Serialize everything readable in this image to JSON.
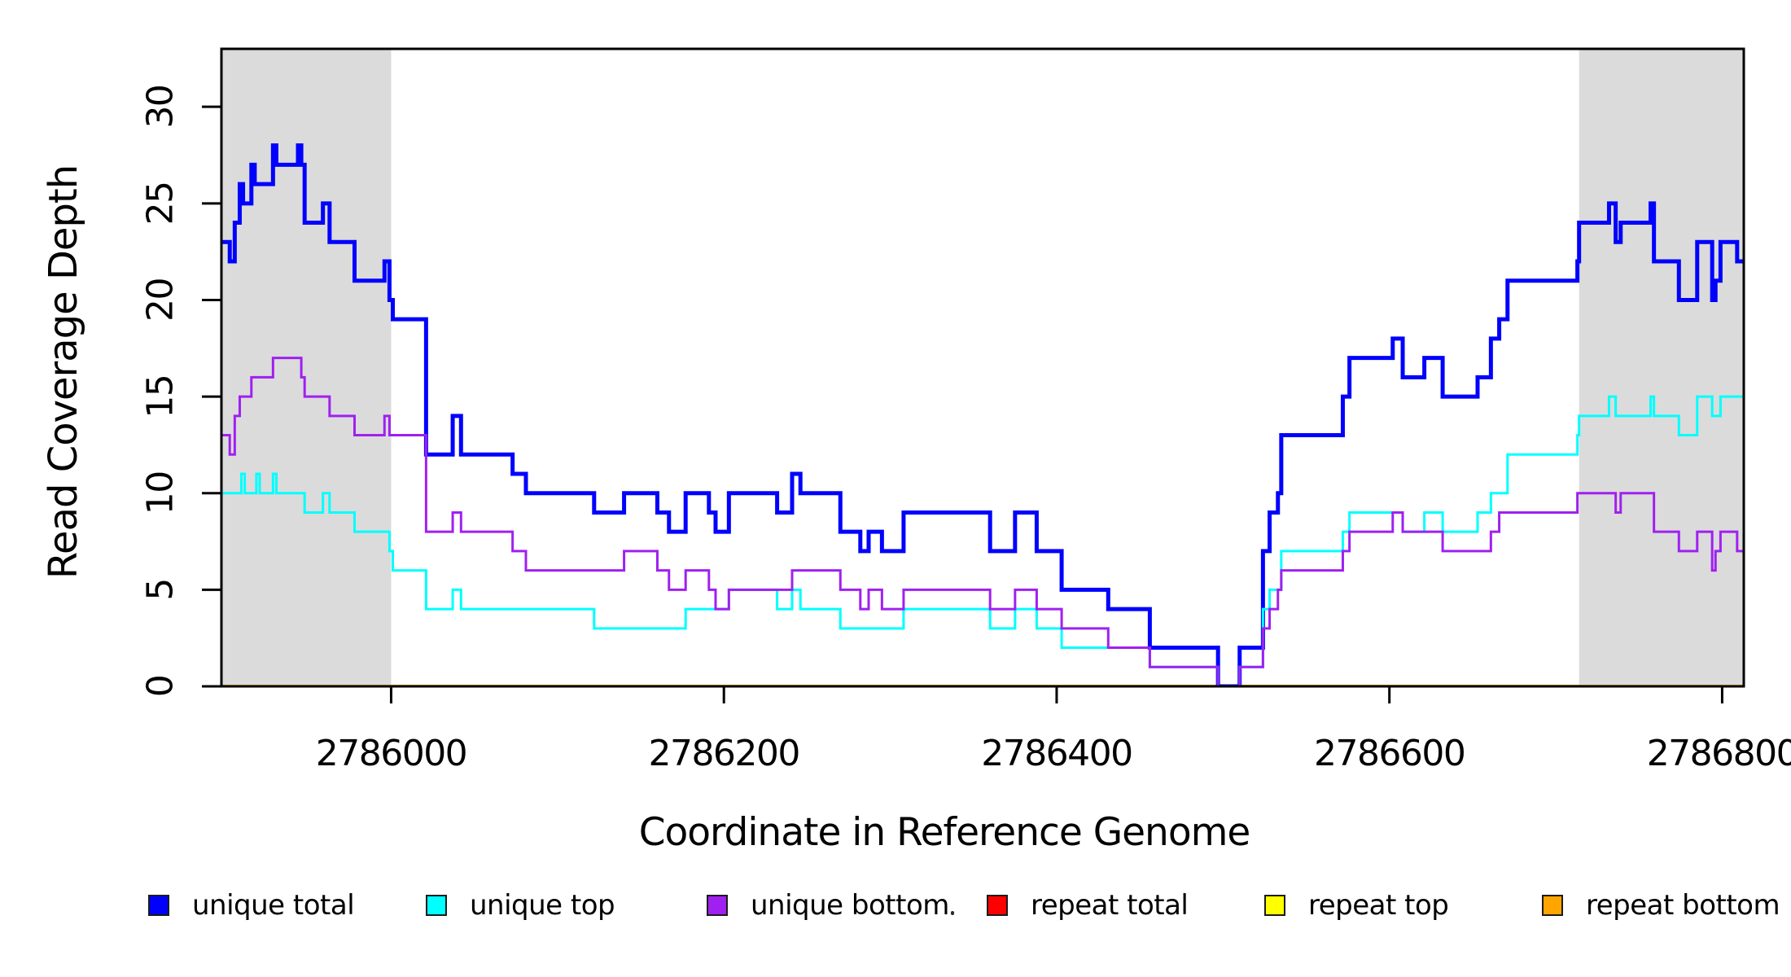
{
  "chart_data": {
    "type": "line",
    "subtype": "step",
    "title": "",
    "xlabel": "Coordinate in Reference Genome",
    "ylabel": "Read Coverage Depth",
    "x_range": [
      2785898,
      2786813
    ],
    "y_range": [
      0,
      33
    ],
    "x_ticks": [
      2786000,
      2786200,
      2786400,
      2786600,
      2786800
    ],
    "y_ticks": [
      0,
      5,
      10,
      15,
      20,
      25,
      30
    ],
    "grid": false,
    "background_color": "#FFFFFF",
    "plot_border_color": "#000000",
    "shade_color": "#DBDBDB",
    "shaded_regions": [
      {
        "from": 2785898,
        "to": 2786000
      },
      {
        "from": 2786714,
        "to": 2786813
      }
    ],
    "legend_position": "bottom",
    "legend": [
      {
        "label": "unique total",
        "color": "#0000FF"
      },
      {
        "label": "unique top",
        "color": "#00FFFF"
      },
      {
        "label": "unique bottom",
        "color": "#A020F0"
      },
      {
        "label": "repeat total",
        "color": "#FF0000"
      },
      {
        "label": "repeat top",
        "color": "#FFFF00"
      },
      {
        "label": "repeat bottom",
        "color": "#FFA500"
      }
    ],
    "series": [
      {
        "name": "repeat total",
        "color": "#FF0000",
        "width": 4,
        "steps": [
          [
            2785898,
            0
          ],
          [
            2786813,
            0
          ]
        ]
      },
      {
        "name": "repeat top",
        "color": "#FFFF00",
        "width": 4,
        "steps": [
          [
            2785898,
            0
          ],
          [
            2786813,
            0
          ]
        ]
      },
      {
        "name": "repeat bottom",
        "color": "#FFA500",
        "width": 4,
        "steps": [
          [
            2785898,
            0
          ],
          [
            2786813,
            0
          ]
        ]
      },
      {
        "name": "unique total",
        "color": "#0000FF",
        "width": 5,
        "steps": [
          [
            2785898,
            23
          ],
          [
            2785903,
            22
          ],
          [
            2785906,
            24
          ],
          [
            2785909,
            26
          ],
          [
            2785911,
            25
          ],
          [
            2785916,
            27
          ],
          [
            2785918,
            26
          ],
          [
            2785929,
            28
          ],
          [
            2785931,
            27
          ],
          [
            2785944,
            28
          ],
          [
            2785946,
            27
          ],
          [
            2785948,
            24
          ],
          [
            2785959,
            25
          ],
          [
            2785963,
            23
          ],
          [
            2785978,
            21
          ],
          [
            2785996,
            22
          ],
          [
            2785999,
            20
          ],
          [
            2786001,
            19
          ],
          [
            2786021,
            12
          ],
          [
            2786037,
            14
          ],
          [
            2786042,
            12
          ],
          [
            2786073,
            11
          ],
          [
            2786081,
            10
          ],
          [
            2786122,
            9
          ],
          [
            2786140,
            10
          ],
          [
            2786160,
            9
          ],
          [
            2786167,
            8
          ],
          [
            2786177,
            10
          ],
          [
            2786191,
            9
          ],
          [
            2786195,
            8
          ],
          [
            2786203,
            10
          ],
          [
            2786232,
            9
          ],
          [
            2786241,
            11
          ],
          [
            2786246,
            10
          ],
          [
            2786270,
            8
          ],
          [
            2786282,
            7
          ],
          [
            2786287,
            8
          ],
          [
            2786295,
            7
          ],
          [
            2786308,
            9
          ],
          [
            2786360,
            7
          ],
          [
            2786375,
            9
          ],
          [
            2786388,
            7
          ],
          [
            2786403,
            5
          ],
          [
            2786431,
            4
          ],
          [
            2786456,
            2
          ],
          [
            2786497,
            0
          ],
          [
            2786510,
            2
          ],
          [
            2786524,
            7
          ],
          [
            2786528,
            9
          ],
          [
            2786533,
            10
          ],
          [
            2786535,
            13
          ],
          [
            2786572,
            15
          ],
          [
            2786576,
            17
          ],
          [
            2786602,
            18
          ],
          [
            2786608,
            16
          ],
          [
            2786621,
            17
          ],
          [
            2786632,
            15
          ],
          [
            2786653,
            16
          ],
          [
            2786661,
            18
          ],
          [
            2786666,
            19
          ],
          [
            2786671,
            21
          ],
          [
            2786713,
            22
          ],
          [
            2786714,
            24
          ],
          [
            2786732,
            25
          ],
          [
            2786736,
            23
          ],
          [
            2786739,
            24
          ],
          [
            2786757,
            25
          ],
          [
            2786759,
            22
          ],
          [
            2786774,
            20
          ],
          [
            2786785,
            23
          ],
          [
            2786794,
            20
          ],
          [
            2786796,
            21
          ],
          [
            2786799,
            23
          ],
          [
            2786809,
            22
          ],
          [
            2786813,
            22
          ]
        ]
      },
      {
        "name": "unique top",
        "color": "#00FFFF",
        "width": 3,
        "steps": [
          [
            2785898,
            10
          ],
          [
            2785910,
            11
          ],
          [
            2785912,
            10
          ],
          [
            2785919,
            11
          ],
          [
            2785921,
            10
          ],
          [
            2785929,
            11
          ],
          [
            2785931,
            10
          ],
          [
            2785948,
            9
          ],
          [
            2785959,
            10
          ],
          [
            2785963,
            9
          ],
          [
            2785978,
            8
          ],
          [
            2785999,
            7
          ],
          [
            2786001,
            6
          ],
          [
            2786021,
            4
          ],
          [
            2786037,
            5
          ],
          [
            2786042,
            4
          ],
          [
            2786122,
            3
          ],
          [
            2786177,
            4
          ],
          [
            2786203,
            5
          ],
          [
            2786232,
            4
          ],
          [
            2786241,
            5
          ],
          [
            2786246,
            4
          ],
          [
            2786270,
            3
          ],
          [
            2786308,
            4
          ],
          [
            2786360,
            3
          ],
          [
            2786375,
            4
          ],
          [
            2786388,
            3
          ],
          [
            2786403,
            2
          ],
          [
            2786456,
            1
          ],
          [
            2786497,
            0
          ],
          [
            2786510,
            1
          ],
          [
            2786524,
            4
          ],
          [
            2786528,
            5
          ],
          [
            2786535,
            7
          ],
          [
            2786572,
            8
          ],
          [
            2786576,
            9
          ],
          [
            2786608,
            8
          ],
          [
            2786621,
            9
          ],
          [
            2786632,
            8
          ],
          [
            2786653,
            9
          ],
          [
            2786661,
            10
          ],
          [
            2786671,
            12
          ],
          [
            2786713,
            13
          ],
          [
            2786714,
            14
          ],
          [
            2786732,
            15
          ],
          [
            2786736,
            14
          ],
          [
            2786757,
            15
          ],
          [
            2786759,
            14
          ],
          [
            2786774,
            13
          ],
          [
            2786785,
            15
          ],
          [
            2786794,
            14
          ],
          [
            2786799,
            15
          ],
          [
            2786813,
            15
          ]
        ]
      },
      {
        "name": "unique bottom",
        "color": "#A020F0",
        "width": 3,
        "steps": [
          [
            2785898,
            13
          ],
          [
            2785903,
            12
          ],
          [
            2785906,
            14
          ],
          [
            2785909,
            15
          ],
          [
            2785916,
            16
          ],
          [
            2785929,
            17
          ],
          [
            2785946,
            16
          ],
          [
            2785948,
            15
          ],
          [
            2785963,
            14
          ],
          [
            2785978,
            13
          ],
          [
            2785996,
            14
          ],
          [
            2785999,
            13
          ],
          [
            2786021,
            8
          ],
          [
            2786037,
            9
          ],
          [
            2786042,
            8
          ],
          [
            2786073,
            7
          ],
          [
            2786081,
            6
          ],
          [
            2786140,
            7
          ],
          [
            2786160,
            6
          ],
          [
            2786167,
            5
          ],
          [
            2786177,
            6
          ],
          [
            2786191,
            5
          ],
          [
            2786195,
            4
          ],
          [
            2786203,
            5
          ],
          [
            2786241,
            6
          ],
          [
            2786270,
            5
          ],
          [
            2786282,
            4
          ],
          [
            2786287,
            5
          ],
          [
            2786295,
            4
          ],
          [
            2786308,
            5
          ],
          [
            2786360,
            4
          ],
          [
            2786375,
            5
          ],
          [
            2786388,
            4
          ],
          [
            2786403,
            3
          ],
          [
            2786431,
            2
          ],
          [
            2786456,
            1
          ],
          [
            2786497,
            0
          ],
          [
            2786510,
            1
          ],
          [
            2786524,
            3
          ],
          [
            2786528,
            4
          ],
          [
            2786533,
            5
          ],
          [
            2786535,
            6
          ],
          [
            2786572,
            7
          ],
          [
            2786576,
            8
          ],
          [
            2786602,
            9
          ],
          [
            2786608,
            8
          ],
          [
            2786632,
            7
          ],
          [
            2786661,
            8
          ],
          [
            2786666,
            9
          ],
          [
            2786713,
            10
          ],
          [
            2786736,
            9
          ],
          [
            2786739,
            10
          ],
          [
            2786759,
            8
          ],
          [
            2786774,
            7
          ],
          [
            2786785,
            8
          ],
          [
            2786794,
            6
          ],
          [
            2786796,
            7
          ],
          [
            2786799,
            8
          ],
          [
            2786809,
            7
          ],
          [
            2786813,
            7
          ]
        ]
      }
    ]
  }
}
